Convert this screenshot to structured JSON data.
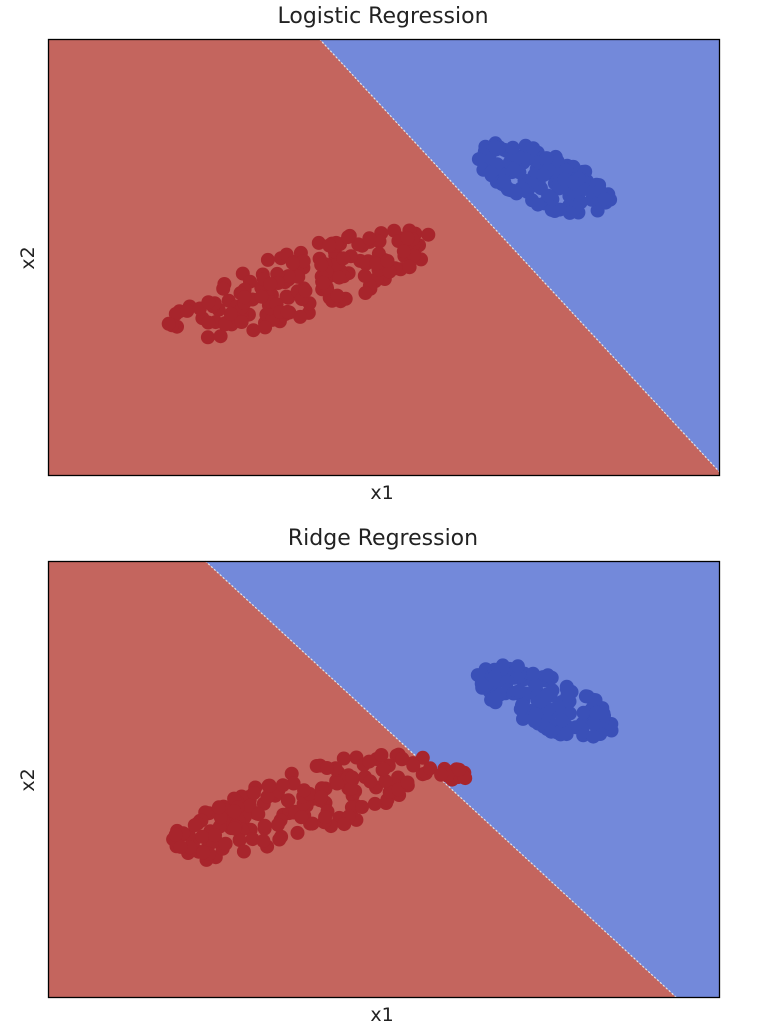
{
  "chart_data": [
    {
      "type": "scatter",
      "title": "Logistic Regression",
      "xlabel": "x1",
      "ylabel": "x2",
      "ticks_visible": false,
      "region_colors": {
        "left": "#c4655e",
        "right": "#7389da"
      },
      "decision_boundary": {
        "from": [
          4.04,
          10.0
        ],
        "to": [
          10.0,
          0.08
        ]
      },
      "classes": [
        {
          "class": 0,
          "color": "#a8252c",
          "region": "left",
          "clusters": [
            {
              "center": [
                3.74,
                4.4
              ],
              "n": 170,
              "spread_major": 2.25,
              "spread_minor": 0.72,
              "angle_deg": 29,
              "seed": 11
            }
          ]
        },
        {
          "class": 1,
          "color": "#3a50b8",
          "region": "right",
          "clusters": [
            {
              "center": [
                7.4,
                6.78
              ],
              "n": 130,
              "spread_major": 1.2,
              "spread_minor": 0.55,
              "angle_deg": -37,
              "seed": 23
            }
          ]
        }
      ]
    },
    {
      "type": "scatter",
      "title": "Ridge Regression",
      "xlabel": "x1",
      "ylabel": "x2",
      "ticks_visible": false,
      "region_colors": {
        "left": "#c4655e",
        "right": "#7389da"
      },
      "decision_boundary": {
        "from": [
          2.34,
          10.0
        ],
        "to": [
          9.36,
          0.0
        ]
      },
      "classes": [
        {
          "class": 0,
          "color": "#a8252c",
          "region": "left",
          "clusters": [
            {
              "center": [
                3.74,
                4.4
              ],
              "n": 170,
              "spread_major": 2.25,
              "spread_minor": 0.72,
              "angle_deg": 29,
              "seed": 37
            },
            {
              "center": [
                5.98,
                5.12
              ],
              "n": 14,
              "spread_major": 0.3,
              "spread_minor": 0.14,
              "angle_deg": 0,
              "seed": 41
            }
          ]
        },
        {
          "class": 1,
          "color": "#3a50b8",
          "region": "right",
          "clusters": [
            {
              "center": [
                7.4,
                6.78
              ],
              "n": 130,
              "spread_major": 1.2,
              "spread_minor": 0.55,
              "angle_deg": -37,
              "seed": 53
            }
          ]
        }
      ]
    }
  ]
}
